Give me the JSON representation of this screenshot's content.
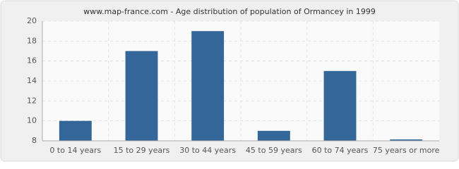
{
  "chart_data": {
    "type": "bar",
    "title": "www.map-france.com - Age distribution of population of Ormancey in 1999",
    "categories": [
      "0 to 14 years",
      "15 to 29 years",
      "30 to 44 years",
      "45 to 59 years",
      "60 to 74 years",
      "75 years or more"
    ],
    "values": [
      10,
      17,
      19,
      9,
      15,
      8
    ],
    "color": "#336699",
    "ylim": [
      8,
      20
    ],
    "yticks": [
      8,
      10,
      12,
      14,
      16,
      18,
      20
    ],
    "grid": true
  }
}
